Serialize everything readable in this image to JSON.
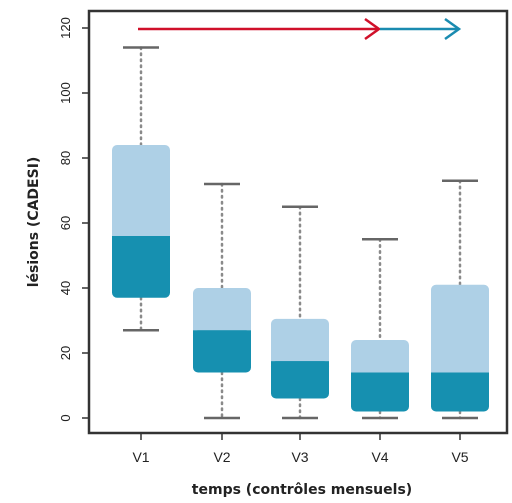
{
  "chart_data": {
    "type": "boxplot",
    "xlabel": "temps (contrôles mensuels)",
    "ylabel": "lésions (CADESI)",
    "ylim": [
      0,
      120
    ],
    "yticks": [
      0,
      20,
      40,
      60,
      80,
      100,
      120
    ],
    "categories": [
      "V1",
      "V2",
      "V3",
      "V4",
      "V5"
    ],
    "boxes": [
      {
        "label": "V1",
        "min": 27,
        "q1": 37,
        "median": 56,
        "q3": 84,
        "max": 114
      },
      {
        "label": "V2",
        "min": 0,
        "q1": 14,
        "median": 27,
        "q3": 40,
        "max": 72
      },
      {
        "label": "V3",
        "min": 0,
        "q1": 6,
        "median": 17.5,
        "q3": 30.5,
        "max": 65
      },
      {
        "label": "V4",
        "min": 0,
        "q1": 2,
        "median": 14,
        "q3": 24,
        "max": 55
      },
      {
        "label": "V5",
        "min": 0,
        "q1": 2,
        "median": 14,
        "q3": 41,
        "max": 73
      }
    ],
    "arrows": [
      {
        "from": "V1",
        "to": "V4",
        "color": "#d0102a"
      },
      {
        "from": "V4",
        "to": "V5",
        "color": "#1a8bb0"
      }
    ],
    "colors": {
      "box_upper": "#aed0e6",
      "box_lower": "#1690b0",
      "whisker": "#8a8a8a",
      "axis": "#333333"
    }
  }
}
